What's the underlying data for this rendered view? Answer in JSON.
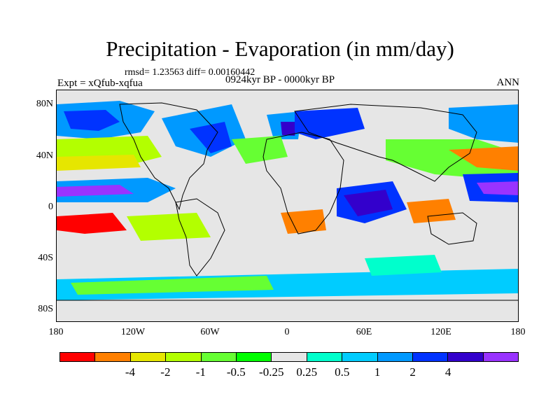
{
  "title": "Precipitation - Evaporation (in mm/day)",
  "stats": "rmsd= 1.23563  diff= 0.00160442",
  "period": "0924kyr BP - 0000kyr BP",
  "experiment": "Expt = xQfub-xqfua",
  "season": "ANN",
  "map": {
    "lat_ticks": [
      "80N",
      "40N",
      "0",
      "40S",
      "80S"
    ],
    "lon_ticks": [
      "180",
      "120W",
      "60W",
      "0",
      "60E",
      "120E",
      "180"
    ],
    "background_color": "#e6e6e6"
  },
  "colorbar": {
    "colors": [
      "#ff0000",
      "#ff8000",
      "#e6e600",
      "#b3ff00",
      "#66ff33",
      "#00ff00",
      "#e6e6e6",
      "#00ffcc",
      "#00ccff",
      "#0099ff",
      "#0033ff",
      "#3300cc",
      "#9933ff"
    ],
    "labels": [
      "-4",
      "-2",
      "-1",
      "-0.5",
      "-0.25",
      "0.25",
      "0.5",
      "1",
      "2",
      "4"
    ]
  }
}
